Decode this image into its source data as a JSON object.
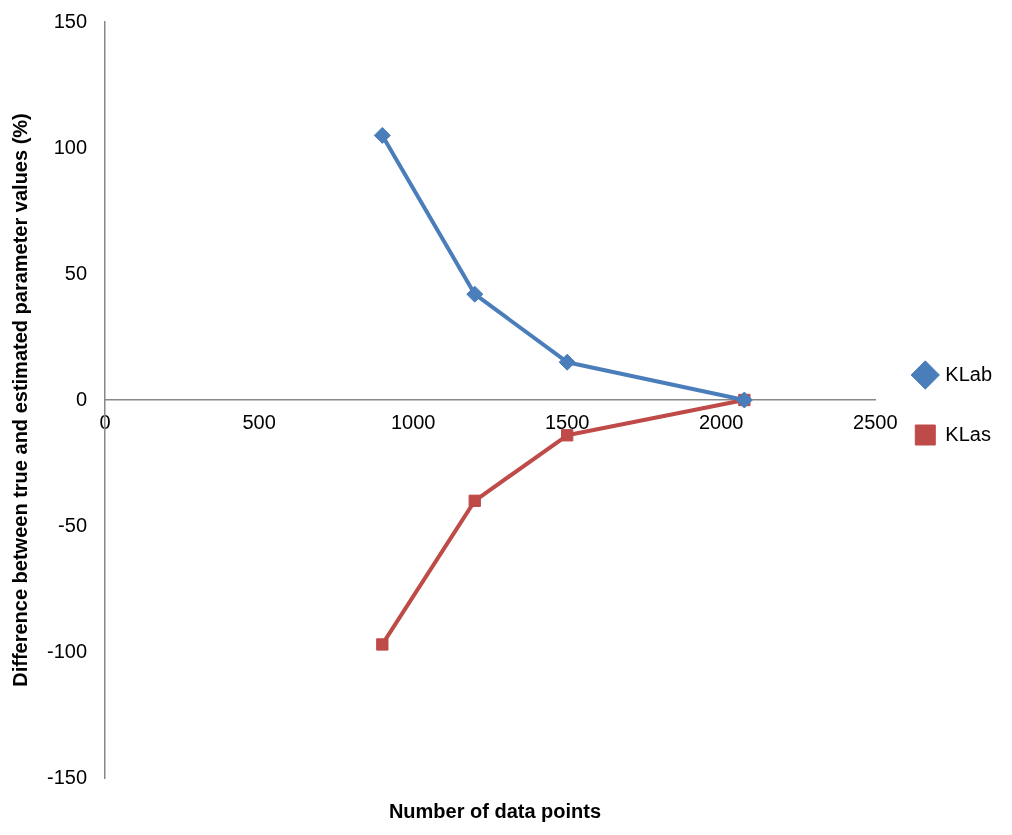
{
  "chart_data": {
    "type": "line",
    "xlabel": "Number of data points",
    "ylabel": "Difference between true and estimated parameter values (%)",
    "xlim": [
      0,
      2500
    ],
    "xticks": [
      0,
      500,
      1000,
      1500,
      2000,
      2500
    ],
    "ylim": [
      -150,
      150
    ],
    "yticks": [
      -150,
      -100,
      -50,
      0,
      50,
      100,
      150
    ],
    "grid": false,
    "legend": "right",
    "series": [
      {
        "name": "KLab",
        "color": "#4a7ebb",
        "marker": "diamond",
        "x": [
          900,
          1200,
          1500,
          2075
        ],
        "values": [
          105,
          42,
          15,
          0
        ]
      },
      {
        "name": "KLas",
        "color": "#be4b48",
        "marker": "square",
        "x": [
          900,
          1200,
          1500,
          2075
        ],
        "values": [
          -97,
          -40,
          -14,
          0
        ]
      }
    ]
  }
}
